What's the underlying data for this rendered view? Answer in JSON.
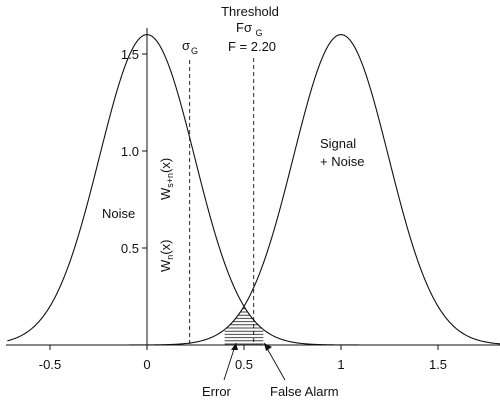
{
  "chart_data": {
    "type": "line",
    "xlim": [
      -0.72,
      1.82
    ],
    "ylim": [
      0,
      1.65
    ],
    "x_ticks": [
      {
        "value": -0.5,
        "label": "-0.5"
      },
      {
        "value": 0,
        "label": "0"
      },
      {
        "value": 0.5,
        "label": "0.5"
      },
      {
        "value": 1,
        "label": "1"
      },
      {
        "value": 1.5,
        "label": "1.5"
      }
    ],
    "y_ticks": [
      {
        "value": 0.5,
        "label": "0.5"
      },
      {
        "value": 1.0,
        "label": "1.0"
      },
      {
        "value": 1.5,
        "label": "1.5"
      }
    ],
    "series": [
      {
        "name": "Noise",
        "mean": 0,
        "sigma": 0.245,
        "peak": 1.6
      },
      {
        "name": "Signal + Noise",
        "mean": 1.0,
        "sigma": 0.245,
        "peak": 1.6
      }
    ],
    "sigma_line": {
      "x": 0.22,
      "label_symbol": "σ",
      "label_sub": "G"
    },
    "threshold": {
      "x": 0.55,
      "title": "Threshold",
      "symbol": "Fσ",
      "symbol_sub": "G",
      "value_label": "F = 2.20"
    },
    "labels": {
      "noise": "Noise",
      "signal_line1": "Signal",
      "signal_line2": "+ Noise",
      "wn": "W",
      "wn_sub": "n",
      "wn_arg": "(x)",
      "wsn": "W",
      "wsn_sub": "s+n",
      "wsn_arg": "(x)",
      "error": "Error",
      "false_alarm": "False Alarm"
    }
  }
}
